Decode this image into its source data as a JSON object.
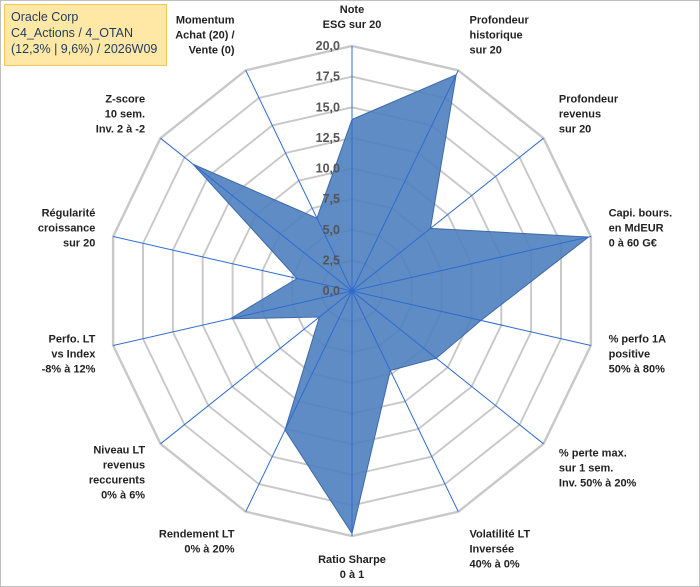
{
  "header": {
    "line1": "Oracle Corp",
    "line2": "C4_Actions / 4_OTAN",
    "line3": "(12,3% | 9,6%) / 2026W09"
  },
  "chart_data": {
    "type": "radar",
    "title": "Oracle Corp",
    "rlim": [
      0,
      20
    ],
    "ticks": [
      "0,0",
      "2,5",
      "5,0",
      "7,5",
      "10,0",
      "12,5",
      "15,0",
      "17,5",
      "20,0"
    ],
    "grid": true,
    "series": [
      {
        "name": "Oracle Corp",
        "color": "#4f7fbf",
        "values": [
          14,
          19.6,
          8.2,
          19.8,
          10.8,
          8.8,
          7.2,
          19.8,
          12.6,
          3.4,
          10.2,
          4.6,
          16.6,
          6.6
        ]
      }
    ],
    "axes": [
      {
        "label": [
          "Note",
          "ESG sur 20"
        ]
      },
      {
        "label": [
          "Profondeur",
          "historique",
          "sur 20"
        ]
      },
      {
        "label": [
          "Profondeur",
          "revenus",
          "sur 20"
        ]
      },
      {
        "label": [
          "Capi. bours.",
          "en MdEUR",
          "0 à 60 G€"
        ]
      },
      {
        "label": [
          "% perfo 1A",
          "positive",
          "50% à 80%"
        ]
      },
      {
        "label": [
          "% perte max.",
          "sur 1 sem.",
          "Inv. 50% à 20%"
        ]
      },
      {
        "label": [
          "Volatilité LT",
          "Inversée",
          "40% à 0%"
        ]
      },
      {
        "label": [
          "Ratio Sharpe",
          "0 à 1"
        ]
      },
      {
        "label": [
          "Rendement LT",
          "0% à 20%"
        ]
      },
      {
        "label": [
          "Niveau LT",
          "revenus",
          "reccurents",
          "0% à 6%"
        ]
      },
      {
        "label": [
          "Perfo. LT",
          "vs Index",
          "-8% à 12%"
        ]
      },
      {
        "label": [
          "Régularité",
          "croissance",
          "sur 20"
        ]
      },
      {
        "label": [
          "Z-score",
          "10 sem.",
          "Inv. 2 à -2"
        ]
      },
      {
        "label": [
          "Momentum",
          "Achat (20) /",
          "Vente (0)"
        ]
      }
    ]
  }
}
